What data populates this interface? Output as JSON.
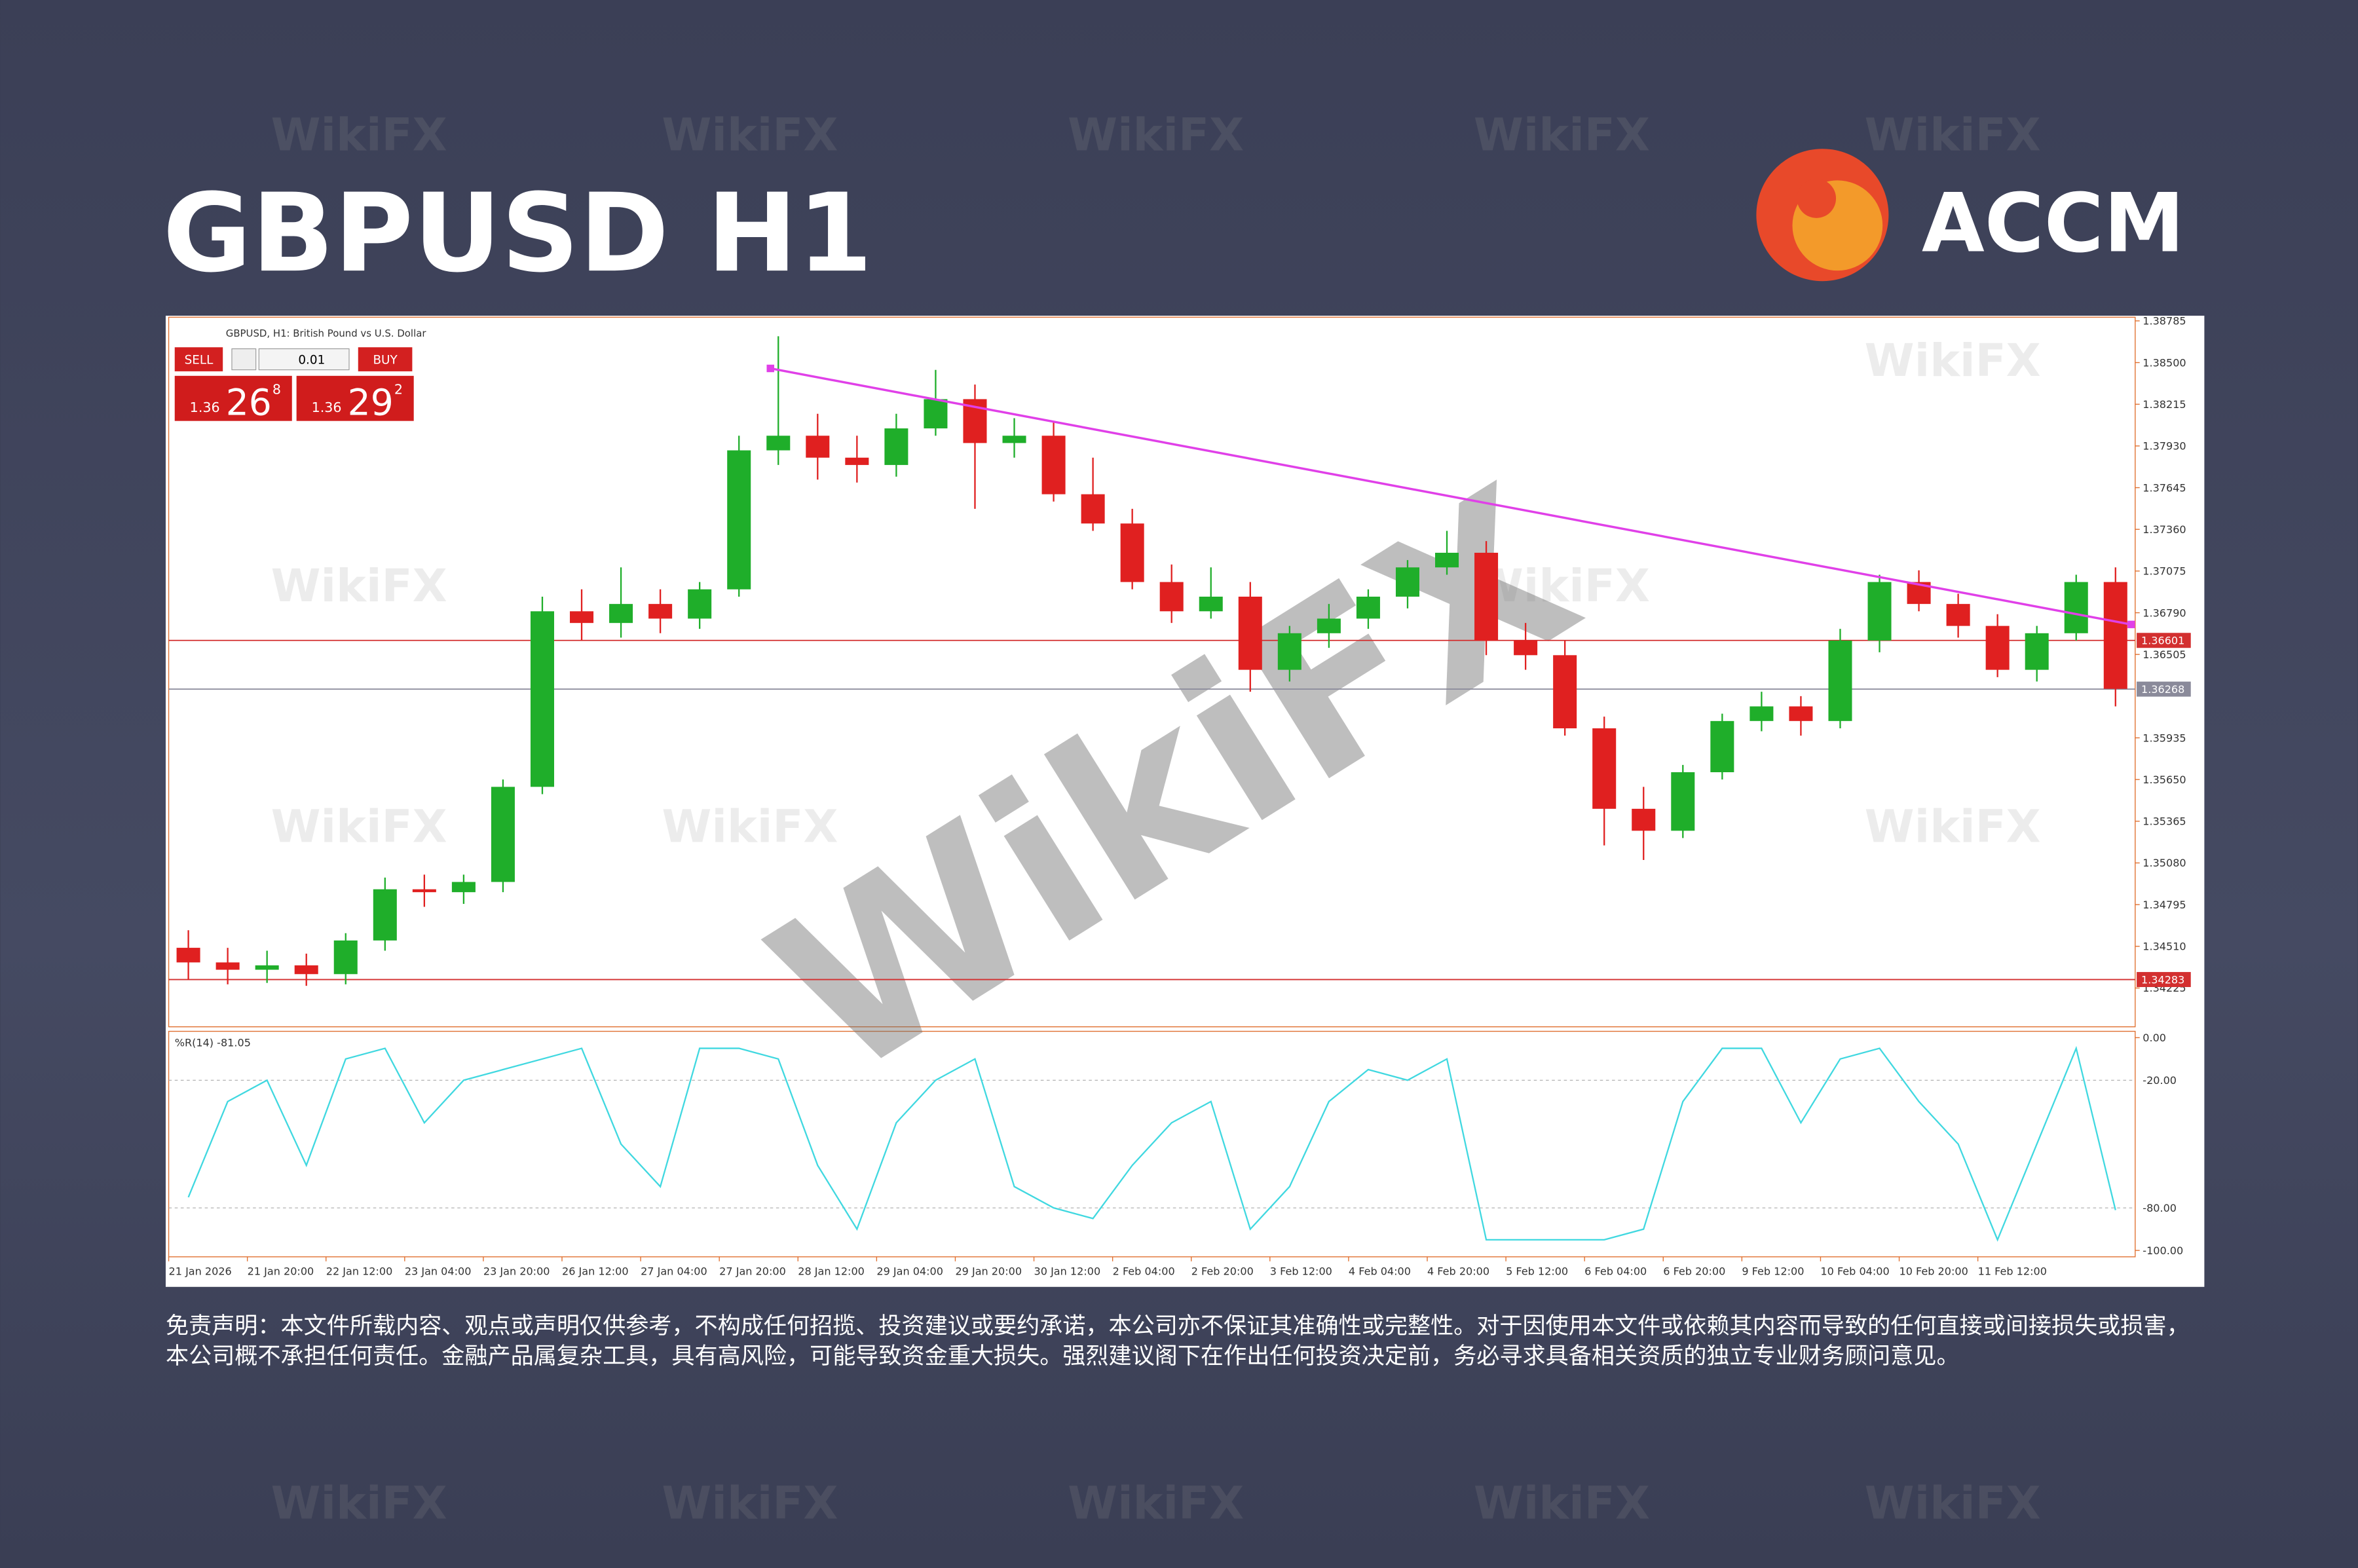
{
  "header": {
    "title": "GBPUSD H1",
    "logo": "ACCM"
  },
  "watermark": "WikiFX",
  "trade_panel": {
    "sell": "SELL",
    "buy": "BUY",
    "lot": "0.01",
    "bid_big": "1.36",
    "bid": "26",
    "bid_pip": "8",
    "ask_big": "1.36",
    "ask": "29",
    "ask_pip": "2"
  },
  "disclaimer": "免责声明：本文件所载内容、观点或声明仅供参考，不构成任何招揽、投资建议或要约承诺，本公司亦不保证其准确性或完整性。对于因使用本文件或依赖其内容而导致的任何直接或间接损失或损害，本公司概不承担任何责任。金融产品属复杂工具，具有高风险，可能导致资金重大损失。强烈建议阁下在作出任何投资决定前，务必寻求具备相关资质的独立专业财务顾问意见。",
  "chart_data": {
    "type": "candlestick",
    "title": "GBPUSD, H1:  British Pound vs U.S. Dollar",
    "categories": [
      "21 Jan 2026",
      null,
      "21 Jan 20:00",
      null,
      "22 Jan 12:00",
      null,
      "23 Jan 04:00",
      null,
      "23 Jan 20:00",
      null,
      "26 Jan 12:00",
      null,
      "27 Jan 04:00",
      null,
      "27 Jan 20:00",
      null,
      "28 Jan 12:00",
      null,
      "29 Jan 04:00",
      null,
      "29 Jan 20:00",
      null,
      "30 Jan 12:00",
      null,
      "2 Feb 04:00",
      null,
      "2 Feb 20:00",
      null,
      "3 Feb 12:00",
      null,
      "4 Feb 04:00",
      null,
      "4 Feb 20:00",
      null,
      "5 Feb 12:00",
      null,
      "6 Feb 04:00",
      null,
      "6 Feb 20:00",
      null,
      "9 Feb 12:00",
      null,
      "10 Feb 04:00",
      null,
      "10 Feb 20:00",
      null,
      "11 Feb 12:00",
      null,
      null,
      null
    ],
    "open": [
      1.345,
      1.344,
      1.3435,
      1.3438,
      1.3432,
      1.3455,
      1.349,
      1.3488,
      1.3495,
      1.356,
      1.368,
      1.3672,
      1.3685,
      1.3675,
      1.3695,
      1.379,
      1.38,
      1.3785,
      1.378,
      1.3805,
      1.3825,
      1.3795,
      1.38,
      1.376,
      1.374,
      1.37,
      1.368,
      1.369,
      1.364,
      1.3665,
      1.3675,
      1.369,
      1.371,
      1.372,
      1.366,
      1.365,
      1.36,
      1.3545,
      1.353,
      1.357,
      1.3605,
      1.3615,
      1.3605,
      1.366,
      1.37,
      1.3685,
      1.367,
      1.364,
      1.3665,
      1.37
    ],
    "high": [
      1.3462,
      1.345,
      1.3448,
      1.3446,
      1.346,
      1.3498,
      1.35,
      1.35,
      1.3565,
      1.369,
      1.3695,
      1.371,
      1.3695,
      1.37,
      1.38,
      1.3868,
      1.3815,
      1.38,
      1.3815,
      1.3845,
      1.3835,
      1.3812,
      1.381,
      1.3785,
      1.375,
      1.3712,
      1.371,
      1.37,
      1.367,
      1.3685,
      1.3695,
      1.3715,
      1.3735,
      1.3728,
      1.3672,
      1.366,
      1.3608,
      1.356,
      1.3575,
      1.361,
      1.3625,
      1.3622,
      1.3668,
      1.3705,
      1.3708,
      1.3692,
      1.3678,
      1.367,
      1.3705,
      1.371
    ],
    "low": [
      1.3428,
      1.3425,
      1.3426,
      1.3424,
      1.3425,
      1.3448,
      1.3478,
      1.348,
      1.3488,
      1.3555,
      1.366,
      1.3662,
      1.3665,
      1.3668,
      1.369,
      1.378,
      1.377,
      1.3768,
      1.3772,
      1.38,
      1.375,
      1.3785,
      1.3755,
      1.3735,
      1.3695,
      1.3672,
      1.3675,
      1.3625,
      1.3632,
      1.3655,
      1.3668,
      1.3682,
      1.3705,
      1.365,
      1.364,
      1.3595,
      1.352,
      1.351,
      1.3525,
      1.3565,
      1.3598,
      1.3595,
      1.36,
      1.3652,
      1.368,
      1.3662,
      1.3635,
      1.3632,
      1.366,
      1.3615
    ],
    "close": [
      1.344,
      1.3435,
      1.3438,
      1.3432,
      1.3455,
      1.349,
      1.3488,
      1.3495,
      1.356,
      1.368,
      1.3672,
      1.3685,
      1.3675,
      1.3695,
      1.379,
      1.38,
      1.3785,
      1.378,
      1.3805,
      1.3825,
      1.3795,
      1.38,
      1.376,
      1.374,
      1.37,
      1.368,
      1.369,
      1.364,
      1.3665,
      1.3675,
      1.369,
      1.371,
      1.372,
      1.366,
      1.365,
      1.36,
      1.3545,
      1.353,
      1.357,
      1.3605,
      1.3615,
      1.3605,
      1.366,
      1.37,
      1.3685,
      1.367,
      1.364,
      1.3665,
      1.37,
      1.3627
    ],
    "color_up": "#1fae2a",
    "color_down": "#e02020",
    "ylim": [
      1.3396,
      1.3881
    ],
    "yticks": [
      1.38785,
      {
        "value": 1.385,
        "label": "1.38500"
      },
      1.38215,
      {
        "value": 1.3793,
        "label": "1.37930"
      },
      1.37645,
      {
        "value": 1.3736,
        "label": "1.37360"
      },
      1.37075,
      {
        "value": 1.3679,
        "label": "1.36790"
      },
      1.36505,
      1.35935,
      {
        "value": 1.3565,
        "label": "1.35650"
      },
      1.35365,
      {
        "value": 1.3508,
        "label": "1.35080"
      },
      1.34795,
      {
        "value": 1.3451,
        "label": "1.34510"
      },
      1.34225
    ],
    "hlines": [
      {
        "value": 1.36601,
        "color": "#d32f2f"
      },
      {
        "value": 1.36268,
        "color": "#8a8a9a"
      },
      {
        "value": 1.34283,
        "color": "#d32f2f"
      }
    ],
    "trendline": {
      "x": [
        14.8,
        49.4
      ],
      "y": [
        1.3846,
        1.3671
      ],
      "color": "#e040e8"
    },
    "indicator": {
      "type": "line",
      "label": "%R(14) -81.05",
      "color": "#40d8e0",
      "values": [
        -75,
        -30,
        -20,
        -60,
        -10,
        -5,
        -40,
        -20,
        -15,
        -10,
        -5,
        -50,
        -70,
        -5,
        -5,
        -10,
        -60,
        -90,
        -40,
        -20,
        -10,
        -70,
        -80,
        -85,
        -60,
        -40,
        -30,
        -90,
        -70,
        -30,
        -15,
        -20,
        -10,
        -95,
        -95,
        -95,
        -95,
        -90,
        -30,
        -5,
        -5,
        -40,
        -10,
        -5,
        -30,
        -50,
        -95,
        -50,
        -5,
        -81.05
      ],
      "ylim": [
        -103,
        3
      ],
      "yticks": [
        {
          "value": 0,
          "label": "0.00"
        },
        {
          "value": -20,
          "label": "-20.00"
        },
        {
          "value": -80,
          "label": "-80.00"
        },
        {
          "value": -100,
          "label": "-100.00"
        }
      ]
    }
  }
}
